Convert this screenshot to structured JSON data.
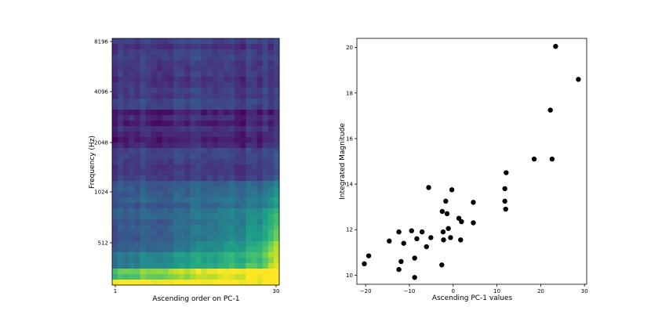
{
  "chart_data": [
    {
      "type": "heatmap",
      "title": "",
      "xlabel": "Ascending order on PC-1",
      "ylabel": "Frequency (Hz)",
      "x_ticks": [
        "1",
        "30"
      ],
      "y_ticks": [
        "512",
        "1024",
        "2048",
        "4096",
        "8196"
      ],
      "y_scale": "log2",
      "colormap": "viridis",
      "n_columns": 30,
      "grid": false,
      "legend": "none"
    },
    {
      "type": "scatter",
      "title": "",
      "xlabel": "Ascending PC-1 values",
      "ylabel": "Integrated Magnitude",
      "xlim": [
        -22,
        30.5
      ],
      "ylim": [
        9.6,
        20.4
      ],
      "x_ticks": [
        "−20",
        "−10",
        "0",
        "10",
        "20",
        "30"
      ],
      "y_ticks": [
        "10",
        "12",
        "14",
        "16",
        "18",
        "20"
      ],
      "grid": false,
      "legend": "none",
      "marker_color": "#000000",
      "points": [
        {
          "x": -20.3,
          "y": 10.5
        },
        {
          "x": -19.3,
          "y": 10.85
        },
        {
          "x": -14.6,
          "y": 11.5
        },
        {
          "x": -12.4,
          "y": 11.9
        },
        {
          "x": -12.4,
          "y": 10.25
        },
        {
          "x": -11.9,
          "y": 10.6
        },
        {
          "x": -11.3,
          "y": 11.4
        },
        {
          "x": -9.5,
          "y": 11.95
        },
        {
          "x": -8.8,
          "y": 10.75
        },
        {
          "x": -8.8,
          "y": 9.9
        },
        {
          "x": -8.3,
          "y": 11.6
        },
        {
          "x": -7.1,
          "y": 11.9
        },
        {
          "x": -6.1,
          "y": 11.25
        },
        {
          "x": -5.6,
          "y": 13.85
        },
        {
          "x": -5.1,
          "y": 11.65
        },
        {
          "x": -2.6,
          "y": 10.45
        },
        {
          "x": -2.5,
          "y": 12.8
        },
        {
          "x": -2.3,
          "y": 11.9
        },
        {
          "x": -2.2,
          "y": 11.55
        },
        {
          "x": -1.7,
          "y": 13.25
        },
        {
          "x": -1.4,
          "y": 12.7
        },
        {
          "x": -1.1,
          "y": 12.05
        },
        {
          "x": -0.6,
          "y": 11.65
        },
        {
          "x": -0.3,
          "y": 13.75
        },
        {
          "x": 1.3,
          "y": 12.5
        },
        {
          "x": 1.7,
          "y": 11.55
        },
        {
          "x": 1.9,
          "y": 12.35
        },
        {
          "x": 4.6,
          "y": 13.2
        },
        {
          "x": 4.6,
          "y": 12.3
        },
        {
          "x": 11.8,
          "y": 13.8
        },
        {
          "x": 11.8,
          "y": 13.25
        },
        {
          "x": 12.0,
          "y": 12.9
        },
        {
          "x": 12.1,
          "y": 14.5
        },
        {
          "x": 18.5,
          "y": 15.1
        },
        {
          "x": 22.2,
          "y": 17.25
        },
        {
          "x": 22.6,
          "y": 15.1
        },
        {
          "x": 23.4,
          "y": 20.05
        },
        {
          "x": 28.6,
          "y": 18.6
        }
      ]
    }
  ]
}
